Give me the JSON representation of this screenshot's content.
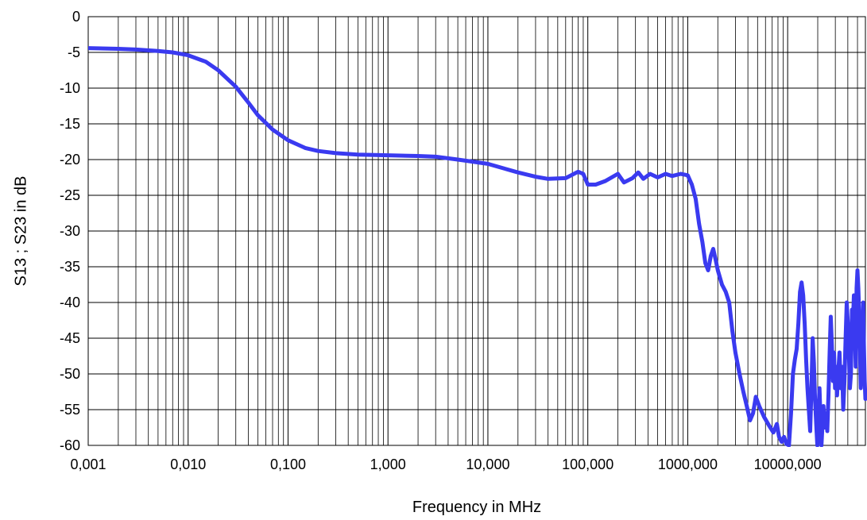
{
  "chart_data": {
    "type": "line",
    "title": "",
    "xlabel": "Frequency in MHz",
    "ylabel": "S13 ; S23 in dB",
    "x_scale": "log",
    "xlim": [
      0.001,
      60000
    ],
    "ylim": [
      -60,
      0
    ],
    "grid": true,
    "legend": "none",
    "x_tick_values": [
      0.001,
      0.01,
      0.1,
      1,
      10,
      100,
      1000,
      10000
    ],
    "x_tick_labels": [
      "0,001",
      "0,010",
      "0,100",
      "1,000",
      "10,000",
      "100,000",
      "1000,000",
      "10000,000"
    ],
    "y_ticks": [
      0,
      -5,
      -10,
      -15,
      -20,
      -25,
      -30,
      -35,
      -40,
      -45,
      -50,
      -55,
      -60
    ],
    "series": [
      {
        "color": "#3a3af0",
        "points": [
          [
            0.001,
            -4.4
          ],
          [
            0.002,
            -4.5
          ],
          [
            0.003,
            -4.6
          ],
          [
            0.005,
            -4.8
          ],
          [
            0.007,
            -5.0
          ],
          [
            0.01,
            -5.4
          ],
          [
            0.015,
            -6.3
          ],
          [
            0.02,
            -7.5
          ],
          [
            0.03,
            -9.8
          ],
          [
            0.04,
            -12.0
          ],
          [
            0.05,
            -13.8
          ],
          [
            0.07,
            -15.8
          ],
          [
            0.1,
            -17.3
          ],
          [
            0.15,
            -18.4
          ],
          [
            0.2,
            -18.8
          ],
          [
            0.3,
            -19.1
          ],
          [
            0.5,
            -19.3
          ],
          [
            1,
            -19.4
          ],
          [
            2,
            -19.5
          ],
          [
            3,
            -19.6
          ],
          [
            5,
            -20.0
          ],
          [
            10,
            -20.6
          ],
          [
            20,
            -21.8
          ],
          [
            30,
            -22.4
          ],
          [
            40,
            -22.7
          ],
          [
            60,
            -22.6
          ],
          [
            80,
            -21.7
          ],
          [
            90,
            -22.0
          ],
          [
            100,
            -23.5
          ],
          [
            120,
            -23.5
          ],
          [
            150,
            -23.0
          ],
          [
            200,
            -22.0
          ],
          [
            230,
            -23.2
          ],
          [
            280,
            -22.6
          ],
          [
            320,
            -21.8
          ],
          [
            360,
            -22.7
          ],
          [
            420,
            -22.0
          ],
          [
            500,
            -22.5
          ],
          [
            600,
            -22.0
          ],
          [
            700,
            -22.3
          ],
          [
            850,
            -22.0
          ],
          [
            1000,
            -22.2
          ],
          [
            1100,
            -23.5
          ],
          [
            1200,
            -25.5
          ],
          [
            1300,
            -29.0
          ],
          [
            1400,
            -31.5
          ],
          [
            1500,
            -34.5
          ],
          [
            1600,
            -35.5
          ],
          [
            1700,
            -33.5
          ],
          [
            1800,
            -32.5
          ],
          [
            1900,
            -34.0
          ],
          [
            2000,
            -35.5
          ],
          [
            2200,
            -37.5
          ],
          [
            2400,
            -38.5
          ],
          [
            2600,
            -40.0
          ],
          [
            2800,
            -44.0
          ],
          [
            3000,
            -47.0
          ],
          [
            3300,
            -50.0
          ],
          [
            3600,
            -52.5
          ],
          [
            3900,
            -54.5
          ],
          [
            4200,
            -56.5
          ],
          [
            4500,
            -55.5
          ],
          [
            4800,
            -53.2
          ],
          [
            5200,
            -54.5
          ],
          [
            5800,
            -56.0
          ],
          [
            6500,
            -57.2
          ],
          [
            7200,
            -58.2
          ],
          [
            7800,
            -57.0
          ],
          [
            8200,
            -58.8
          ],
          [
            8700,
            -59.5
          ],
          [
            9200,
            -58.8
          ],
          [
            9700,
            -59.8
          ],
          [
            10300,
            -60.0
          ],
          [
            10800,
            -55.5
          ],
          [
            11300,
            -50.0
          ],
          [
            11800,
            -48.0
          ],
          [
            12300,
            -46.5
          ],
          [
            12800,
            -43.0
          ],
          [
            13300,
            -38.5
          ],
          [
            13800,
            -37.2
          ],
          [
            14300,
            -39.0
          ],
          [
            14800,
            -43.0
          ],
          [
            15300,
            -48.0
          ],
          [
            15800,
            -52.0
          ],
          [
            16300,
            -55.0
          ],
          [
            16800,
            -58.0
          ],
          [
            17300,
            -52.0
          ],
          [
            17800,
            -45.0
          ],
          [
            18300,
            -48.5
          ],
          [
            18800,
            -53.5
          ],
          [
            19300,
            -57.0
          ],
          [
            19800,
            -60.0
          ],
          [
            20300,
            -56.0
          ],
          [
            20800,
            -52.0
          ],
          [
            21300,
            -56.0
          ],
          [
            21800,
            -60.0
          ],
          [
            22300,
            -57.0
          ],
          [
            22800,
            -54.5
          ],
          [
            23500,
            -57.5
          ],
          [
            24200,
            -55.5
          ],
          [
            24900,
            -58.0
          ],
          [
            25600,
            -53.0
          ],
          [
            26300,
            -47.0
          ],
          [
            27000,
            -42.0
          ],
          [
            27700,
            -46.0
          ],
          [
            28400,
            -51.0
          ],
          [
            29100,
            -47.0
          ],
          [
            29800,
            -52.0
          ],
          [
            30500,
            -49.0
          ],
          [
            31200,
            -53.0
          ],
          [
            32000,
            -50.0
          ],
          [
            33000,
            -47.0
          ],
          [
            34000,
            -52.0
          ],
          [
            35000,
            -49.0
          ],
          [
            36000,
            -55.0
          ],
          [
            37000,
            -51.0
          ],
          [
            38000,
            -45.0
          ],
          [
            39000,
            -40.0
          ],
          [
            40000,
            -43.0
          ],
          [
            41000,
            -47.0
          ],
          [
            42000,
            -52.0
          ],
          [
            43000,
            -50.0
          ],
          [
            44000,
            -41.0
          ],
          [
            45000,
            -43.0
          ],
          [
            46000,
            -39.0
          ],
          [
            47000,
            -44.0
          ],
          [
            48000,
            -49.0
          ],
          [
            49000,
            -38.0
          ],
          [
            50000,
            -35.5
          ],
          [
            51000,
            -38.0
          ],
          [
            52000,
            -42.0
          ],
          [
            53000,
            -47.0
          ],
          [
            54000,
            -52.0
          ],
          [
            55000,
            -49.0
          ],
          [
            56000,
            -45.0
          ],
          [
            57000,
            -40.0
          ],
          [
            58000,
            -46.0
          ],
          [
            59000,
            -51.0
          ],
          [
            60000,
            -53.5
          ]
        ]
      }
    ]
  }
}
